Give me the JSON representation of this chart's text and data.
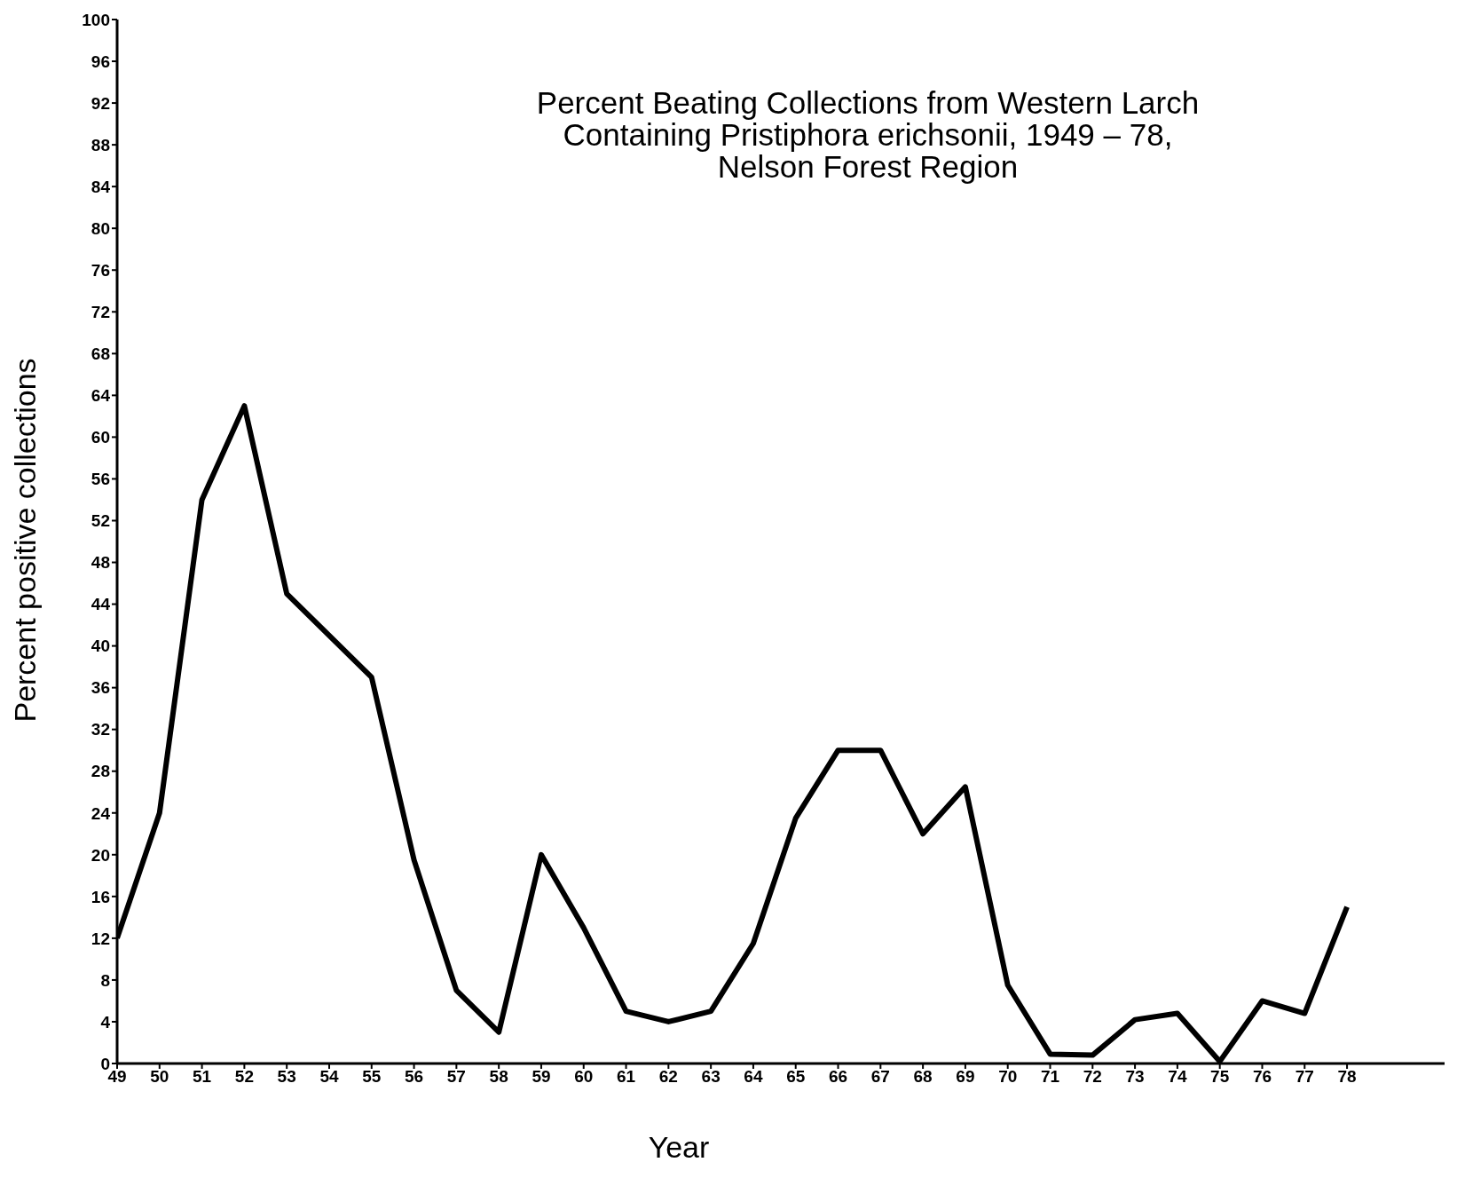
{
  "chart_data": {
    "type": "line",
    "title": "Percent Beating Collections from Western Larch\nContaining Pristiphora erichsonii, 1949 – 78,\nNelson Forest Region",
    "xlabel": "Year",
    "ylabel": "Percent positive collections",
    "x": [
      49,
      50,
      51,
      52,
      53,
      54,
      55,
      56,
      57,
      58,
      59,
      60,
      61,
      62,
      63,
      64,
      65,
      66,
      67,
      68,
      69,
      70,
      71,
      72,
      73,
      74,
      75,
      76,
      77,
      78
    ],
    "series": [
      {
        "color": "#000000",
        "values": [
          12,
          24,
          54,
          63,
          45,
          41,
          37,
          19.5,
          7,
          3,
          20,
          13,
          5,
          4,
          5,
          11.5,
          23.5,
          30,
          30,
          22,
          26.5,
          7.5,
          0.9,
          0.8,
          4.2,
          4.8,
          0.2,
          6,
          4.8,
          15
        ]
      }
    ],
    "xlim": [
      49,
      80.3
    ],
    "xticks": [
      49,
      50,
      51,
      52,
      53,
      54,
      55,
      56,
      57,
      58,
      59,
      60,
      61,
      62,
      63,
      64,
      65,
      66,
      67,
      68,
      69,
      70,
      71,
      72,
      73,
      74,
      75,
      76,
      77,
      78
    ],
    "ylim": [
      0,
      100
    ],
    "yticks": [
      0,
      4,
      8,
      12,
      16,
      20,
      24,
      28,
      32,
      36,
      40,
      44,
      48,
      52,
      56,
      60,
      64,
      68,
      72,
      76,
      80,
      84,
      88,
      92,
      96,
      100
    ],
    "grid": false,
    "legend": false,
    "marker": "none",
    "line_style": "solid"
  }
}
